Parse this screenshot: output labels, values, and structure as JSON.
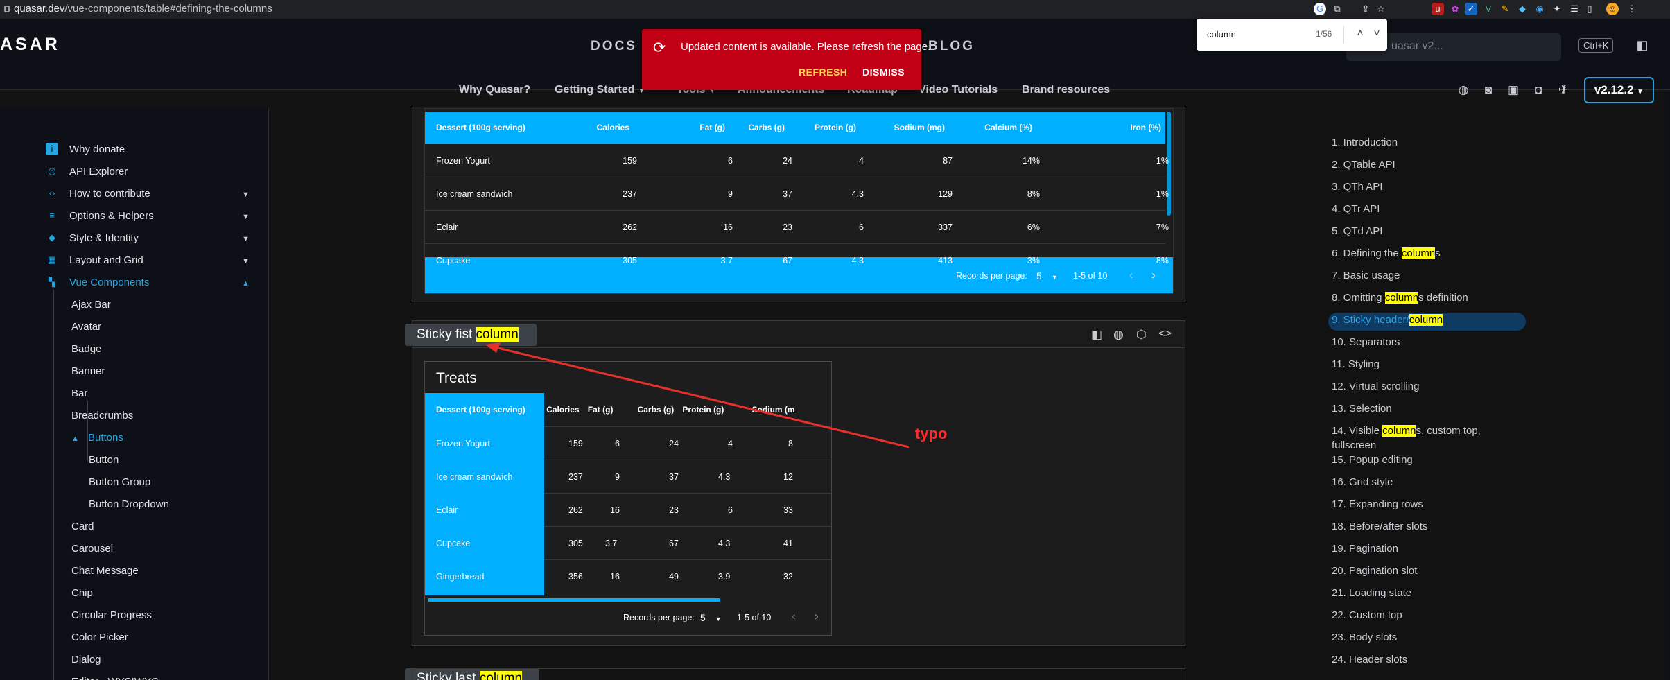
{
  "browser": {
    "url_domain": "quasar.dev",
    "url_path": "/vue-components/table#defining-the-columns",
    "find": {
      "query": "column",
      "count": "1/56"
    }
  },
  "header": {
    "logo": "ASAR",
    "nav": [
      "DOCS",
      "BLOG"
    ],
    "subnav": [
      "Why Quasar?",
      "Getting Started",
      "Tools",
      "Announcements",
      "Roadmap",
      "Video Tutorials",
      "Brand resources"
    ],
    "search_placeholder": "Search Quasar v2...",
    "search_visible": "uasar v2...",
    "search_kbd": "Ctrl+K",
    "version": "v2.12.2"
  },
  "toast": {
    "message": "Updated content is available. Please refresh the page.",
    "refresh": "REFRESH",
    "dismiss": "DISMISS",
    "accent": "#c10015"
  },
  "sidebar": {
    "top_items": [
      {
        "label": "Why donate",
        "icon": "info-icon"
      },
      {
        "label": "API Explorer",
        "icon": "explore-icon"
      },
      {
        "label": "How to contribute",
        "icon": "code-icon"
      },
      {
        "label": "Options & Helpers",
        "icon": "tune-icon"
      },
      {
        "label": "Style & Identity",
        "icon": "palette-icon"
      },
      {
        "label": "Layout and Grid",
        "icon": "grid-icon"
      },
      {
        "label": "Vue Components",
        "icon": "widgets-icon"
      }
    ],
    "components": [
      "Ajax Bar",
      "Avatar",
      "Badge",
      "Banner",
      "Bar",
      "Breadcrumbs",
      "Buttons"
    ],
    "buttons_children": [
      "Button",
      "Button Group",
      "Button Dropdown"
    ],
    "after": [
      "Card",
      "Carousel",
      "Chat Message",
      "Chip",
      "Circular Progress",
      "Color Picker",
      "Dialog",
      "Editor - WYSIWYG"
    ]
  },
  "table1": {
    "headers": [
      "Dessert (100g serving)",
      "Calories",
      "Fat (g)",
      "Carbs (g)",
      "Protein (g)",
      "Sodium (mg)",
      "Calcium (%)",
      "Iron (%)"
    ],
    "rows": [
      [
        "Frozen Yogurt",
        "159",
        "6",
        "24",
        "4",
        "87",
        "14%",
        "1%"
      ],
      [
        "Ice cream sandwich",
        "237",
        "9",
        "37",
        "4.3",
        "129",
        "8%",
        "1%"
      ],
      [
        "Eclair",
        "262",
        "16",
        "23",
        "6",
        "337",
        "6%",
        "7%"
      ]
    ],
    "partial_row": [
      "Cupcake",
      "305",
      "3.7",
      "67",
      "4.3",
      "413",
      "3%",
      "8%"
    ],
    "footer": {
      "rpp_label": "Records per page:",
      "rpp": "5",
      "range": "1-5 of 10"
    }
  },
  "section2": {
    "title_pre": "Sticky fist ",
    "title_hl": "column",
    "table_title": "Treats",
    "headers": [
      "Dessert (100g serving)",
      "Calories",
      "Fat (g)",
      "Carbs (g)",
      "Protein (g)",
      "Sodium (m"
    ],
    "rows": [
      [
        "Frozen Yogurt",
        "159",
        "6",
        "24",
        "4",
        "8"
      ],
      [
        "Ice cream sandwich",
        "237",
        "9",
        "37",
        "4.3",
        "12"
      ],
      [
        "Eclair",
        "262",
        "16",
        "23",
        "6",
        "33"
      ],
      [
        "Cupcake",
        "305",
        "3.7",
        "67",
        "4.3",
        "41"
      ],
      [
        "Gingerbread",
        "356",
        "16",
        "49",
        "3.9",
        "32"
      ]
    ],
    "footer": {
      "rpp_label": "Records per page:",
      "rpp": "5",
      "range": "1-5 of 10"
    }
  },
  "section3": {
    "title_pre": "Sticky last ",
    "title_hl": "column"
  },
  "annotation": {
    "label": "typo",
    "color": "#ff2a2a"
  },
  "toc": [
    {
      "pre": "1. Introduction"
    },
    {
      "pre": "2. QTable API"
    },
    {
      "pre": "3. QTh API"
    },
    {
      "pre": "4. QTr API"
    },
    {
      "pre": "5. QTd API"
    },
    {
      "pre": "6. Defining the ",
      "hl": "column",
      "post": "s"
    },
    {
      "pre": "7. Basic usage"
    },
    {
      "pre": "8. Omitting ",
      "hl": "column",
      "post": "s definition"
    },
    {
      "pre": "9. Sticky header/",
      "hl": "column",
      "post": ""
    },
    {
      "pre": "10. Separators"
    },
    {
      "pre": "11. Styling"
    },
    {
      "pre": "12. Virtual scrolling"
    },
    {
      "pre": "13. Selection"
    },
    {
      "pre": "14. Visible ",
      "hl": "column",
      "post": "s, custom top,"
    },
    {
      "pre": "fullscreen"
    },
    {
      "pre": "15. Popup editing"
    },
    {
      "pre": "16. Grid style"
    },
    {
      "pre": "17. Expanding rows"
    },
    {
      "pre": "18. Before/after slots"
    },
    {
      "pre": "19. Pagination"
    },
    {
      "pre": "20. Pagination slot"
    },
    {
      "pre": "21. Loading state"
    },
    {
      "pre": "22. Custom top"
    },
    {
      "pre": "23. Body slots"
    },
    {
      "pre": "24. Header slots"
    }
  ]
}
